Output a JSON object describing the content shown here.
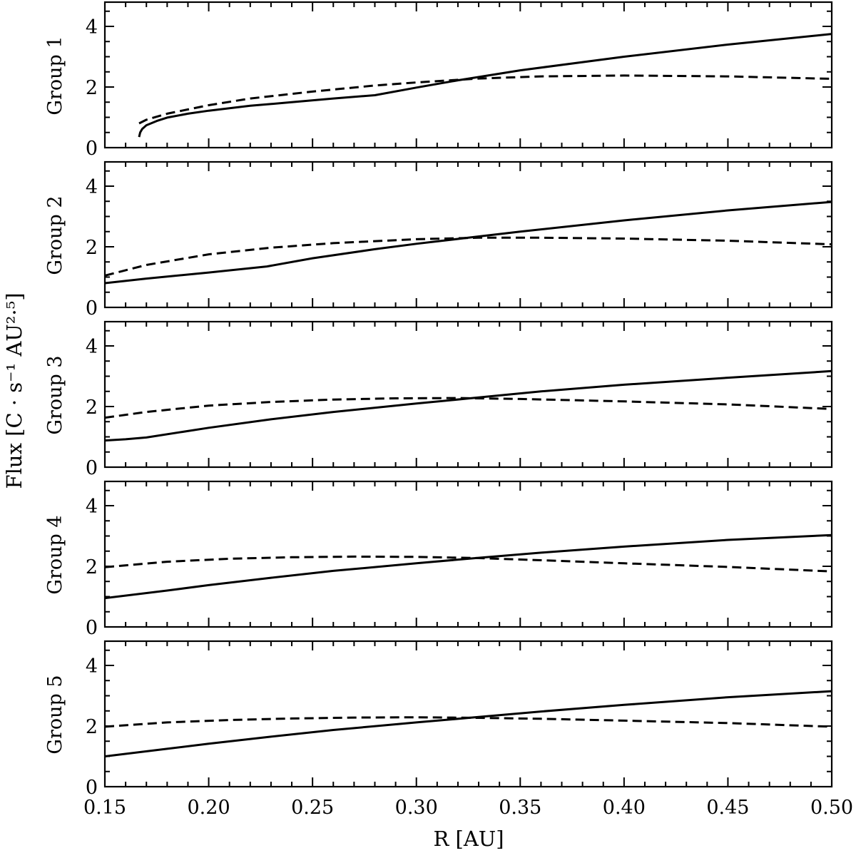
{
  "chart_data": {
    "type": "line",
    "ylabel": "Flux [C · s⁻¹ AU²·⁵]",
    "xlabel": "R [AU]",
    "xlim": [
      0.15,
      0.5
    ],
    "xticks": [
      "0.15",
      "0.20",
      "0.25",
      "0.30",
      "0.35",
      "0.40",
      "0.45",
      "0.50"
    ],
    "ylim": [
      0,
      4.75
    ],
    "yticks": [
      "0",
      "2",
      "4"
    ],
    "grid": false,
    "panels": [
      {
        "label": "Group 1",
        "series": [
          {
            "style": "solid",
            "x": [
              0.1665,
              0.167,
              0.168,
              0.17,
              0.175,
              0.18,
              0.19,
              0.2,
              0.22,
              0.24,
              0.26,
              0.28,
              0.3,
              0.32,
              0.35,
              0.4,
              0.45,
              0.5
            ],
            "y": [
              0.35,
              0.5,
              0.62,
              0.74,
              0.88,
              0.99,
              1.12,
              1.22,
              1.38,
              1.5,
              1.62,
              1.73,
              1.98,
              2.22,
              2.55,
              3.0,
              3.4,
              3.75
            ]
          },
          {
            "style": "dashed",
            "x": [
              0.1665,
              0.17,
              0.18,
              0.2,
              0.22,
              0.25,
              0.28,
              0.3,
              0.33,
              0.36,
              0.4,
              0.45,
              0.5
            ],
            "y": [
              0.8,
              0.92,
              1.12,
              1.4,
              1.62,
              1.85,
              2.05,
              2.15,
              2.28,
              2.35,
              2.38,
              2.35,
              2.27
            ]
          }
        ]
      },
      {
        "label": "Group 2",
        "series": [
          {
            "style": "solid",
            "x": [
              0.15,
              0.17,
              0.2,
              0.228,
              0.25,
              0.28,
              0.3,
              0.325,
              0.35,
              0.4,
              0.45,
              0.5
            ],
            "y": [
              0.8,
              0.95,
              1.15,
              1.35,
              1.62,
              1.92,
              2.1,
              2.3,
              2.5,
              2.87,
              3.2,
              3.48
            ]
          },
          {
            "style": "dashed",
            "x": [
              0.15,
              0.17,
              0.2,
              0.23,
              0.26,
              0.3,
              0.33,
              0.36,
              0.4,
              0.45,
              0.5
            ],
            "y": [
              1.05,
              1.4,
              1.75,
              1.97,
              2.12,
              2.25,
              2.3,
              2.3,
              2.27,
              2.2,
              2.08
            ]
          }
        ]
      },
      {
        "label": "Group 3",
        "series": [
          {
            "style": "solid",
            "x": [
              0.15,
              0.16,
              0.17,
              0.2,
              0.23,
              0.26,
              0.3,
              0.33,
              0.36,
              0.4,
              0.45,
              0.5
            ],
            "y": [
              0.88,
              0.92,
              0.98,
              1.3,
              1.58,
              1.82,
              2.1,
              2.3,
              2.5,
              2.72,
              2.95,
              3.17
            ]
          },
          {
            "style": "dashed",
            "x": [
              0.15,
              0.17,
              0.2,
              0.23,
              0.26,
              0.29,
              0.32,
              0.35,
              0.4,
              0.45,
              0.5
            ],
            "y": [
              1.63,
              1.82,
              2.03,
              2.15,
              2.23,
              2.27,
              2.28,
              2.25,
              2.17,
              2.07,
              1.92
            ]
          }
        ]
      },
      {
        "label": "Group 4",
        "series": [
          {
            "style": "solid",
            "x": [
              0.15,
              0.18,
              0.2,
              0.23,
              0.26,
              0.3,
              0.33,
              0.36,
              0.4,
              0.45,
              0.5
            ],
            "y": [
              0.95,
              1.2,
              1.38,
              1.62,
              1.85,
              2.1,
              2.28,
              2.45,
              2.65,
              2.87,
              3.03
            ]
          },
          {
            "style": "dashed",
            "x": [
              0.15,
              0.18,
              0.21,
              0.24,
              0.27,
              0.3,
              0.33,
              0.36,
              0.4,
              0.45,
              0.5
            ],
            "y": [
              1.97,
              2.15,
              2.25,
              2.3,
              2.32,
              2.31,
              2.27,
              2.2,
              2.1,
              1.98,
              1.83
            ]
          }
        ]
      },
      {
        "label": "Group 5",
        "series": [
          {
            "style": "solid",
            "x": [
              0.15,
              0.18,
              0.2,
              0.23,
              0.26,
              0.3,
              0.33,
              0.36,
              0.4,
              0.45,
              0.5
            ],
            "y": [
              1.0,
              1.25,
              1.42,
              1.65,
              1.87,
              2.12,
              2.3,
              2.48,
              2.7,
              2.95,
              3.15
            ]
          },
          {
            "style": "dashed",
            "x": [
              0.15,
              0.18,
              0.21,
              0.24,
              0.27,
              0.3,
              0.33,
              0.36,
              0.4,
              0.45,
              0.5
            ],
            "y": [
              1.98,
              2.12,
              2.2,
              2.25,
              2.28,
              2.29,
              2.27,
              2.24,
              2.18,
              2.1,
              1.98
            ]
          }
        ]
      }
    ]
  }
}
